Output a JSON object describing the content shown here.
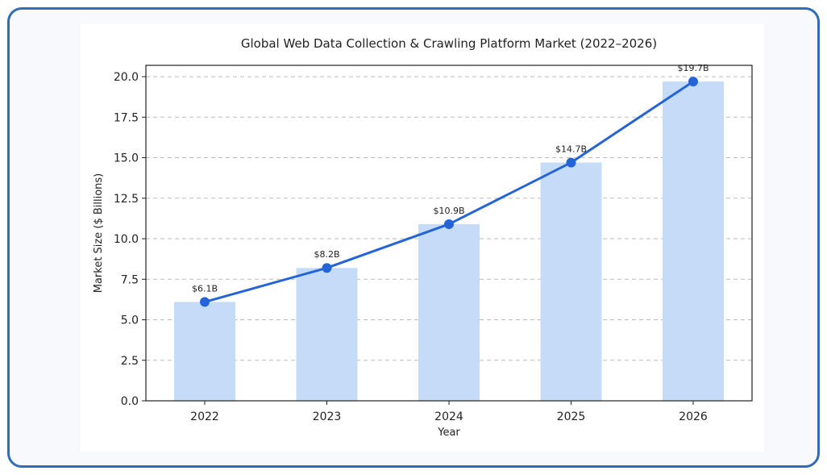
{
  "chart_data": {
    "type": "bar",
    "title": "Global Web Data Collection & Crawling Platform Market (2022–2026)",
    "xlabel": "Year",
    "ylabel": "Market Size ($ Billions)",
    "categories": [
      "2022",
      "2023",
      "2024",
      "2025",
      "2026"
    ],
    "values": [
      6.1,
      8.2,
      10.9,
      14.7,
      19.7
    ],
    "data_labels": [
      "$6.1B",
      "$8.2B",
      "$10.9B",
      "$14.7B",
      "$19.7B"
    ],
    "overlay_line": true,
    "ylim": [
      0,
      20.7
    ],
    "yticks": [
      "0.0",
      "2.5",
      "5.0",
      "7.5",
      "10.0",
      "12.5",
      "15.0",
      "17.5",
      "20.0"
    ],
    "grid": "horizontal dashed",
    "colors": {
      "bar": "#c5dcf8",
      "line": "#2563d9",
      "frame": "#2f6db5"
    }
  }
}
